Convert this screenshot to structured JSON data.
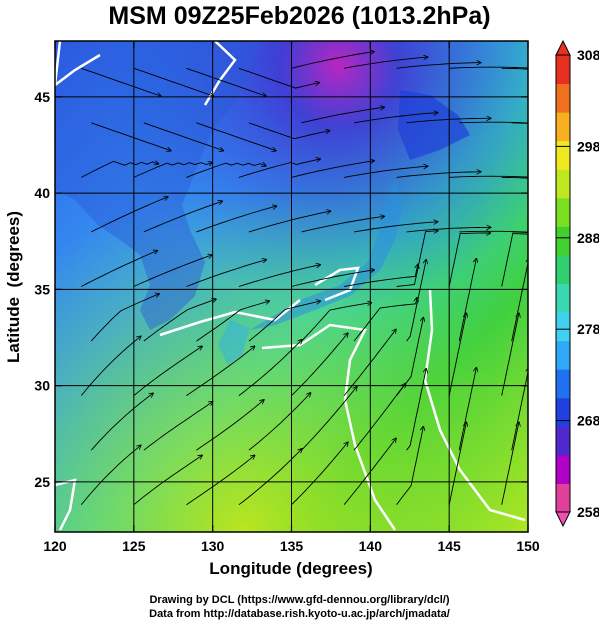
{
  "title": "MSM 09Z25Feb2026 (1013.2hPa)",
  "x_axis": {
    "label": "Longitude (degrees)",
    "range": [
      120,
      150
    ],
    "ticks": [
      {
        "value": 120,
        "label": "120"
      },
      {
        "value": 125,
        "label": "125"
      },
      {
        "value": 130,
        "label": "130"
      },
      {
        "value": 135,
        "label": "135"
      },
      {
        "value": 140,
        "label": "140"
      },
      {
        "value": 145,
        "label": "145"
      },
      {
        "value": 150,
        "label": "150"
      }
    ]
  },
  "y_axis": {
    "label": "Latitude  (degrees)",
    "range": [
      22.4,
      47.9
    ],
    "ticks": [
      {
        "value": 25,
        "label": "25"
      },
      {
        "value": 30,
        "label": "30"
      },
      {
        "value": 35,
        "label": "35"
      },
      {
        "value": 40,
        "label": "40"
      },
      {
        "value": 45,
        "label": "45"
      }
    ]
  },
  "colorbar": {
    "min": 258,
    "max": 308,
    "ticks": [
      {
        "value": 258,
        "label": "258"
      },
      {
        "value": 268,
        "label": "268"
      },
      {
        "value": 278,
        "label": "278"
      },
      {
        "value": 288,
        "label": "288"
      },
      {
        "value": 298,
        "label": "298"
      },
      {
        "value": 308,
        "label": "308"
      }
    ],
    "colors": [
      "#e0409a",
      "#b000c8",
      "#5028d0",
      "#2040e0",
      "#2070f0",
      "#30a8f8",
      "#40d0f0",
      "#38d8b0",
      "#30d070",
      "#40d030",
      "#78e020",
      "#c0e820",
      "#f0e820",
      "#f8b020",
      "#f07020",
      "#e83020"
    ]
  },
  "credits": [
    "Drawing by DCL (https://www.gfd-dennou.org/library/dcl/)",
    "Data from http://database.rish.kyoto-u.ac.jp/arch/jmadata/"
  ]
}
